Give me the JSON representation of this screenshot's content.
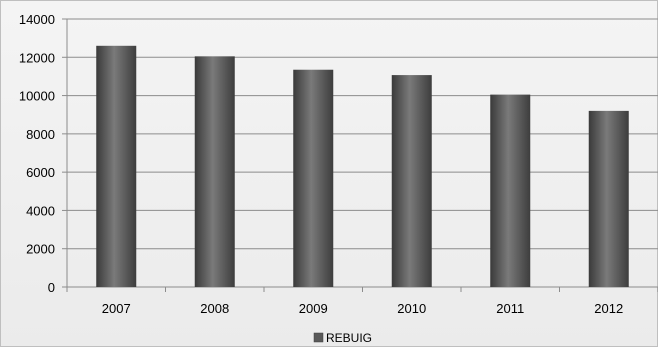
{
  "chart_data": {
    "type": "bar",
    "title": "",
    "xlabel": "",
    "ylabel": "",
    "categories": [
      "2007",
      "2008",
      "2009",
      "2010",
      "2011",
      "2012"
    ],
    "series": [
      {
        "name": "REBUIG",
        "values": [
          12600,
          12050,
          11350,
          11070,
          10050,
          9200
        ],
        "color": "#595959"
      }
    ],
    "ylim": [
      0,
      14000
    ],
    "yticks": [
      0,
      2000,
      4000,
      6000,
      8000,
      10000,
      12000,
      14000
    ],
    "grid": true,
    "legend": "bottom"
  }
}
